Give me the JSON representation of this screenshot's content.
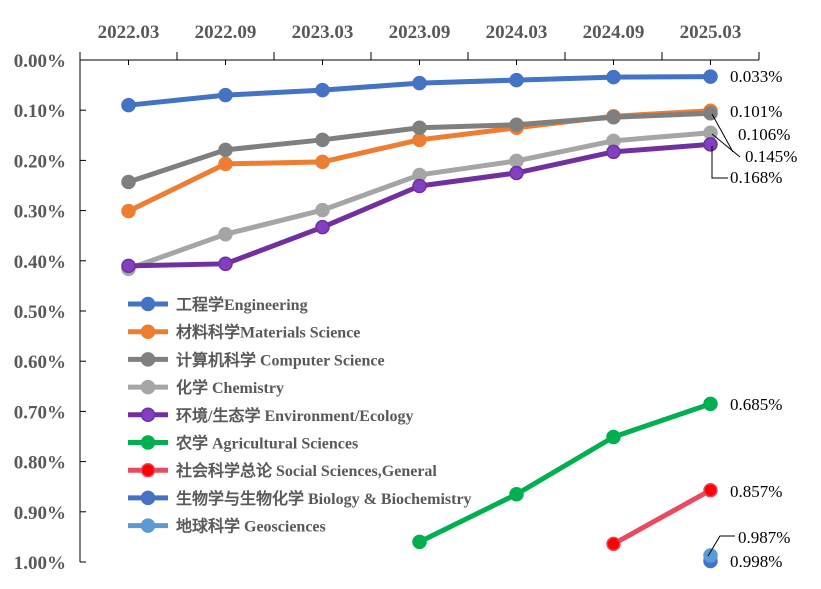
{
  "chart_data": {
    "type": "line",
    "title": "",
    "xlabel": "",
    "ylabel": "",
    "x_axis_position": "top",
    "y_axis_reversed": true,
    "ylim": [
      0,
      1.0
    ],
    "y_unit": "%",
    "grid": false,
    "legend_placement": "left-bottom inside",
    "categories": [
      "2022.03",
      "2022.09",
      "2023.03",
      "2023.09",
      "2024.03",
      "2024.09",
      "2025.03"
    ],
    "y_ticks": [
      "0.00%",
      "0.10%",
      "0.20%",
      "0.30%",
      "0.40%",
      "0.50%",
      "0.60%",
      "0.70%",
      "0.80%",
      "0.90%",
      "1.00%"
    ],
    "series": [
      {
        "name": "工程学Engineering",
        "color": "#4472C4",
        "marker": "#4472C4",
        "values": [
          0.09,
          0.07,
          0.06,
          0.046,
          0.04,
          0.034,
          0.033
        ],
        "end_label": "0.033%"
      },
      {
        "name": "材料科学Materials Science",
        "color": "#ED7D31",
        "marker": "#ED7D31",
        "values": [
          0.301,
          0.207,
          0.203,
          0.159,
          0.135,
          0.112,
          0.101
        ],
        "end_label": "0.101%"
      },
      {
        "name": "计算机科学 Computer Science",
        "color": "#7F7F7F",
        "marker": "#7F7F7F",
        "values": [
          0.243,
          0.179,
          0.159,
          0.135,
          0.129,
          0.114,
          0.106
        ],
        "end_label": "0.106%"
      },
      {
        "name": "化学 Chemistry",
        "color": "#A5A5A5",
        "marker": "#A5A5A5",
        "values": [
          0.416,
          0.347,
          0.299,
          0.229,
          0.201,
          0.161,
          0.145
        ],
        "end_label": "0.145%"
      },
      {
        "name": "环境/生态学 Environment/Ecology",
        "color": "#7030A0",
        "marker": "#8040C0",
        "values": [
          0.41,
          0.406,
          0.333,
          0.251,
          0.225,
          0.183,
          0.168
        ],
        "end_label": "0.168%"
      },
      {
        "name": "农学 Agricultural Sciences",
        "color": "#00B050",
        "marker": "#00B050",
        "values": [
          null,
          null,
          null,
          0.96,
          0.865,
          0.751,
          0.685
        ],
        "end_label": "0.685%"
      },
      {
        "name": "社会科学总论 Social Sciences,General",
        "color": "#E84A5F",
        "marker": "#FF0000",
        "values": [
          null,
          null,
          null,
          null,
          null,
          0.964,
          0.857
        ],
        "end_label": "0.857%"
      },
      {
        "name": "生物学与生物化学 Biology & Biochemistry",
        "color": "#4472C4",
        "marker": "#4472C4",
        "values": [
          null,
          null,
          null,
          null,
          null,
          null,
          0.998
        ],
        "end_label": "0.998%"
      },
      {
        "name": "地球科学 Geosciences",
        "color": "#5B9BD5",
        "marker": "#5B9BD5",
        "values": [
          null,
          null,
          null,
          null,
          null,
          null,
          0.987
        ],
        "end_label": "0.987%"
      }
    ]
  }
}
